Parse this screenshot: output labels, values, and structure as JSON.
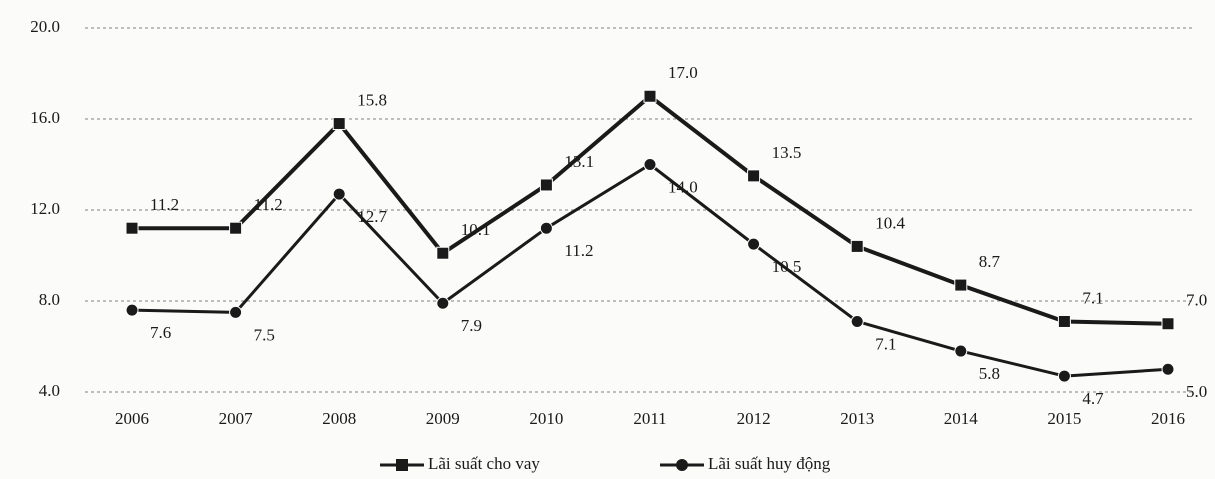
{
  "chart_data": {
    "type": "line",
    "categories": [
      "2006",
      "2007",
      "2008",
      "2009",
      "2010",
      "2011",
      "2012",
      "2013",
      "2014",
      "2015",
      "2016"
    ],
    "series": [
      {
        "name": "Lãi suất cho vay",
        "color": "#1a1a1a",
        "marker": "square",
        "values": [
          11.2,
          11.2,
          15.8,
          10.1,
          13.1,
          17.0,
          13.5,
          10.4,
          8.7,
          7.1,
          7.0
        ],
        "value_labels": [
          "11.2",
          "11.2",
          "15.8",
          "10.1",
          "13.1",
          "17.0",
          "13.5",
          "10.4",
          "8.7",
          "7.1",
          "7.0"
        ]
      },
      {
        "name": "Lãi suất huy động",
        "color": "#1a1a1a",
        "marker": "circle",
        "values": [
          7.6,
          7.5,
          12.7,
          7.9,
          11.2,
          14.0,
          10.5,
          7.1,
          5.8,
          4.7,
          5.0
        ],
        "value_labels": [
          "7.6",
          "7.5",
          "12.7",
          "7.9",
          "11.2",
          "14.0",
          "10.5",
          "7.1",
          "5.8",
          "4.7",
          "5.0"
        ]
      }
    ],
    "ylim": [
      4,
      20
    ],
    "yticks": [
      {
        "value": 4,
        "label": "4.0"
      },
      {
        "value": 8,
        "label": "8.0"
      },
      {
        "value": 12,
        "label": "12.0"
      },
      {
        "value": 16,
        "label": "16.0"
      },
      {
        "value": 20,
        "label": "20.0"
      }
    ],
    "grid": true,
    "legend": "bottom"
  }
}
